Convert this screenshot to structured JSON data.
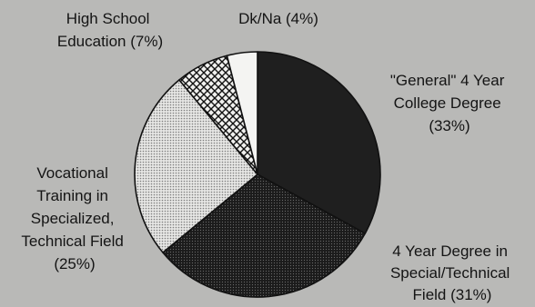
{
  "chart_data": {
    "type": "pie",
    "slices": [
      {
        "label": "\"General\" 4 Year College Degree",
        "value": 33,
        "value_label": "(33%)",
        "pattern": "solid-dark"
      },
      {
        "label": "4 Year Degree in Special/Technical Field",
        "value": 31,
        "value_label": "(31%)",
        "pattern": "dark-dots"
      },
      {
        "label": "Vocational Training in Specialized, Technical Field",
        "value": 25,
        "value_label": "(25%)",
        "pattern": "light-dots"
      },
      {
        "label": "High School Education",
        "value": 7,
        "value_label": "(7%)",
        "pattern": "crosshatch"
      },
      {
        "label": "Dk/Na",
        "value": 4,
        "value_label": "(4%)",
        "pattern": "white"
      }
    ],
    "legend": "none",
    "colors": {
      "background": "#b9b9b7",
      "solid_dark": "#1f1f1f",
      "dark_dots": "#2a2a2a",
      "light_dots": "#d2d2d2",
      "white": "#f4f4f2",
      "outline": "#111111"
    }
  },
  "labels": {
    "general_degree": [
      "\"General\" 4 Year",
      "College Degree",
      "(33%)"
    ],
    "technical_degree": [
      "4 Year Degree in",
      "Special/Technical",
      "Field (31%)"
    ],
    "vocational": [
      "Vocational",
      "Training in",
      "Specialized,",
      "Technical Field",
      "(25%)"
    ],
    "high_school": [
      "High School",
      "Education (7%)"
    ],
    "dkna": [
      "Dk/Na (4%)"
    ]
  }
}
